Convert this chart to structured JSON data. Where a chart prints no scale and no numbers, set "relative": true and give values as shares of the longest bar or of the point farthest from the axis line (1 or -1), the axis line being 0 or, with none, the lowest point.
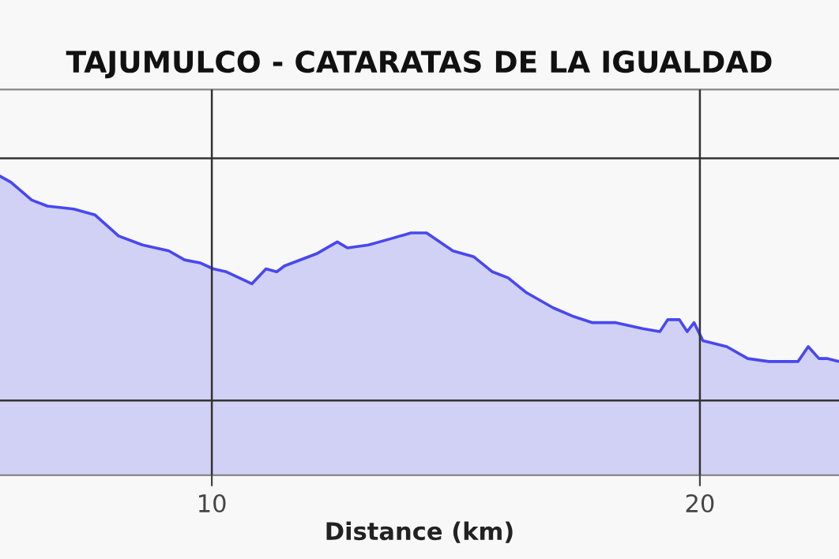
{
  "chart_data": {
    "type": "area",
    "title": "TAJUMULCO - CATARATAS DE LA IGUALDAD",
    "xlabel": "Distance (km)",
    "relative": true,
    "x": [
      5.66,
      5.88,
      6.31,
      6.63,
      7.17,
      7.61,
      8.09,
      8.58,
      9.12,
      9.44,
      9.76,
      10.03,
      10.3,
      10.82,
      11.11,
      11.33,
      11.49,
      12.14,
      12.57,
      12.78,
      13.21,
      13.65,
      14.08,
      14.4,
      14.94,
      15.37,
      15.75,
      16.07,
      16.45,
      16.99,
      17.42,
      17.8,
      18.28,
      18.83,
      19.18,
      19.34,
      19.58,
      19.74,
      19.88,
      20.06,
      20.55,
      20.98,
      21.41,
      22.01,
      22.22,
      22.44,
      22.6,
      22.85
    ],
    "series": [
      {
        "color": "#4848f0",
        "values": [
          1.0,
          0.98,
          0.92,
          0.9,
          0.89,
          0.87,
          0.8,
          0.77,
          0.75,
          0.72,
          0.71,
          0.69,
          0.68,
          0.64,
          0.69,
          0.68,
          0.7,
          0.74,
          0.78,
          0.76,
          0.77,
          0.79,
          0.81,
          0.81,
          0.75,
          0.73,
          0.68,
          0.66,
          0.61,
          0.56,
          0.53,
          0.51,
          0.51,
          0.49,
          0.48,
          0.52,
          0.52,
          0.48,
          0.51,
          0.45,
          0.43,
          0.39,
          0.38,
          0.38,
          0.43,
          0.39,
          0.39,
          0.38
        ]
      }
    ],
    "xlim": [
      5.66,
      22.85
    ],
    "xticks": [
      10,
      20
    ],
    "grid": true,
    "tick_labels": "x"
  }
}
